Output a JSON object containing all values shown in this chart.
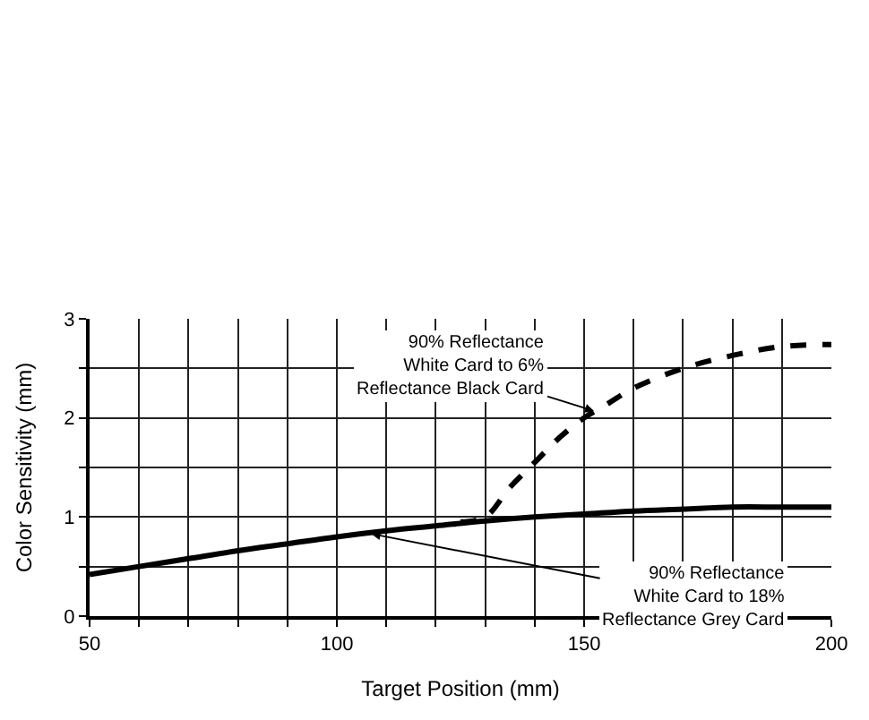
{
  "chart_data": {
    "type": "line",
    "xlabel": "Target Position (mm)",
    "ylabel": "Color Sensitivity (mm)",
    "xlim": [
      50,
      200
    ],
    "ylim": [
      0,
      3
    ],
    "xticks": [
      50,
      {
        "value": 60,
        "label": null
      },
      {
        "value": 70,
        "label": null
      },
      {
        "value": 80,
        "label": null
      },
      {
        "value": 90,
        "label": null
      },
      100,
      {
        "value": 110,
        "label": null
      },
      {
        "value": 120,
        "label": null
      },
      {
        "value": 130,
        "label": null
      },
      {
        "value": 140,
        "label": null
      },
      150,
      {
        "value": 160,
        "label": null
      },
      {
        "value": 170,
        "label": null
      },
      {
        "value": 180,
        "label": null
      },
      {
        "value": 190,
        "label": null
      },
      200
    ],
    "yticks": [
      0,
      {
        "value": 0.5,
        "label": null
      },
      1,
      {
        "value": 1.5,
        "label": null
      },
      2,
      {
        "value": 2.5,
        "label": null
      },
      3
    ],
    "grid": true,
    "series": [
      {
        "color": "#000000",
        "line_style": "solid",
        "x": [
          50,
          60,
          70,
          80,
          90,
          100,
          110,
          120,
          130,
          140,
          150,
          160,
          170,
          180,
          190,
          200
        ],
        "values": [
          0.42,
          0.5,
          0.58,
          0.66,
          0.73,
          0.8,
          0.86,
          0.91,
          0.96,
          1.0,
          1.03,
          1.06,
          1.08,
          1.1,
          1.1,
          1.1
        ]
      },
      {
        "color": "#000000",
        "line_style": "dashed",
        "x": [
          125,
          130,
          135,
          140,
          145,
          150,
          155,
          160,
          170,
          180,
          190,
          200
        ],
        "values": [
          0.95,
          1.0,
          1.3,
          1.55,
          1.8,
          2.0,
          2.15,
          2.3,
          2.5,
          2.63,
          2.72,
          2.74
        ]
      }
    ],
    "annotations": [
      {
        "text": "90% Reflectance\nWhite Card to 6%\nReflectance Black Card",
        "x": 152,
        "y": 2.07
      },
      {
        "text": "90% Reflectance\nWhite Card to 18%\nReflectance Grey Card",
        "x": 107,
        "y": 0.83
      }
    ]
  }
}
